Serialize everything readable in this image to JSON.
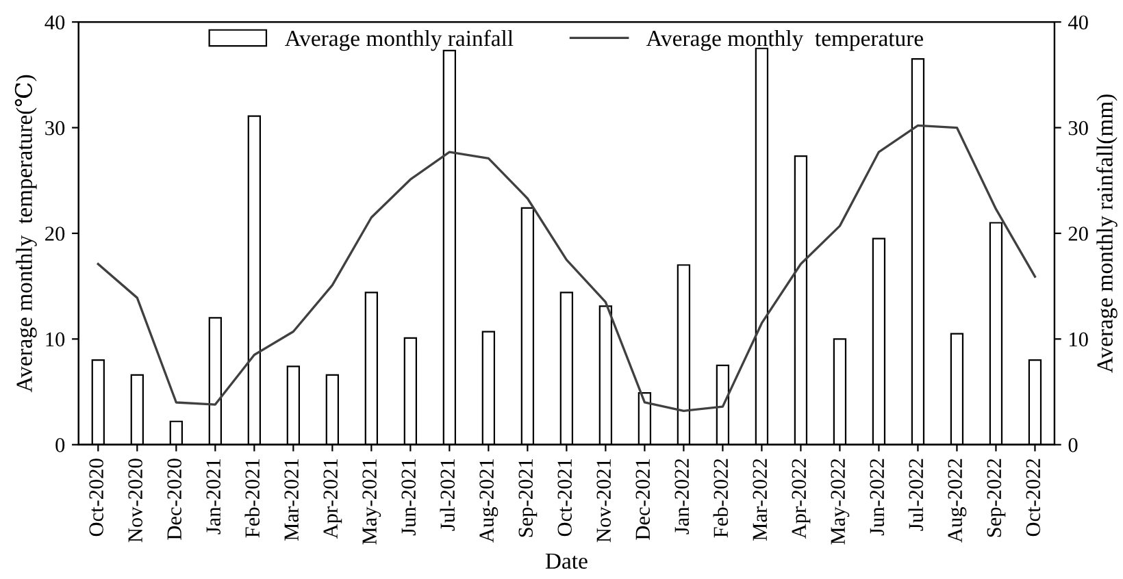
{
  "chart_data": {
    "type": "bar",
    "xlabel": "Date",
    "ylabel": "Average monthly  temperature(℃)",
    "y2label": "Average monthly rainfall(mm)",
    "categories": [
      "Oct-2020",
      "Nov-2020",
      "Dec-2020",
      "Jan-2021",
      "Feb-2021",
      "Mar-2021",
      "Apr-2021",
      "May-2021",
      "Jun-2021",
      "Jul-2021",
      "Aug-2021",
      "Sep-2021",
      "Oct-2021",
      "Nov-2021",
      "Dec-2021",
      "Jan-2022",
      "Feb-2022",
      "Mar-2022",
      "Apr-2022",
      "May-2022",
      "Jun-2022",
      "Jul-2022",
      "Aug-2022",
      "Sep-2022",
      "Oct-2022"
    ],
    "series": [
      {
        "name": "Average monthly rainfall",
        "axis": "y2",
        "color": "#ffffff",
        "values": [
          8.0,
          6.6,
          2.2,
          12.0,
          31.1,
          7.4,
          6.6,
          14.4,
          10.1,
          37.3,
          10.7,
          22.4,
          14.4,
          13.1,
          4.9,
          17.0,
          7.5,
          37.5,
          27.3,
          10.0,
          19.5,
          36.5,
          10.5,
          21.0,
          8.0
        ]
      },
      {
        "name": "Average monthly  temperature",
        "type": "line",
        "color": "#404040",
        "values": [
          17.1,
          13.9,
          4.0,
          3.8,
          8.5,
          10.7,
          15.1,
          21.5,
          25.1,
          27.7,
          27.1,
          23.3,
          17.5,
          13.5,
          4.0,
          3.2,
          3.6,
          11.5,
          17.1,
          20.7,
          27.7,
          30.2,
          30.0,
          22.3,
          15.9
        ]
      }
    ],
    "ylim": [
      0,
      40
    ],
    "yticks": [
      0,
      10,
      20,
      30,
      40
    ],
    "y2lim": [
      0,
      40
    ],
    "y2ticks": [
      0,
      10,
      20,
      30,
      40
    ],
    "grid": false,
    "legend": "top",
    "marker": "none",
    "line_style": "solid"
  }
}
